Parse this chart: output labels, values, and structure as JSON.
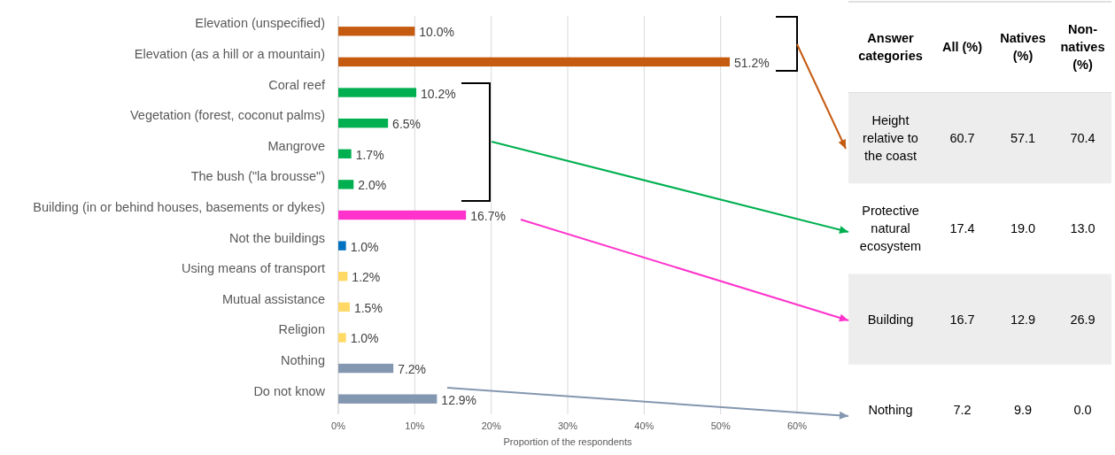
{
  "chart_data": [
    {
      "type": "bar",
      "orientation": "horizontal",
      "xlabel": "Proportion of the respondents",
      "categories": [
        "Elevation (unspecified)",
        "Elevation (as a hill or a mountain)",
        "Coral reef",
        "Vegetation (forest, coconut palms)",
        "Mangrove",
        "The bush (\"la brousse\")",
        "Building (in or behind houses, basements or dykes)",
        "Not the buildings",
        "Using means of transport",
        "Mutual assistance",
        "Religion",
        "Nothing",
        "Do not know"
      ],
      "values": [
        10.0,
        51.2,
        10.2,
        6.5,
        1.7,
        2.0,
        16.7,
        1.0,
        1.2,
        1.5,
        1.0,
        7.2,
        12.9
      ],
      "value_labels": [
        "10.0%",
        "51.2%",
        "10.2%",
        "6.5%",
        "1.7%",
        "2.0%",
        "16.7%",
        "1.0%",
        "1.2%",
        "1.5%",
        "1.0%",
        "7.2%",
        "12.9%"
      ],
      "colors": [
        "#c55a11",
        "#c55a11",
        "#00b050",
        "#00b050",
        "#00b050",
        "#00b050",
        "#ff33cc",
        "#0070c0",
        "#ffd966",
        "#ffd966",
        "#ffd966",
        "#8497b0",
        "#8497b0"
      ],
      "xlim": [
        0,
        60
      ],
      "xticks": [
        {
          "value": 0,
          "label": "0%"
        },
        {
          "value": 10,
          "label": "10%"
        },
        {
          "value": 20,
          "label": "20%"
        },
        {
          "value": 30,
          "label": "30%"
        },
        {
          "value": 40,
          "label": "40%"
        },
        {
          "value": 50,
          "label": "50%"
        },
        {
          "value": 60,
          "label": "60%"
        }
      ],
      "grid": "x"
    },
    {
      "type": "other",
      "annotations": [
        "Answer categories"
      ],
      "categories": [
        "All (%)",
        "Natives (%)",
        "Non-natives (%)"
      ],
      "y_categories": [
        "Height relative to the coast",
        "Protective natural ecosystem",
        "Building",
        "Nothing"
      ],
      "cell_labels": [
        [
          "60.7",
          "57.1",
          "70.4"
        ],
        [
          "17.4",
          "19.0",
          "13.0"
        ],
        [
          "16.7",
          "12.9",
          "26.9"
        ],
        [
          "7.2",
          "9.9",
          "0.0"
        ]
      ]
    }
  ]
}
